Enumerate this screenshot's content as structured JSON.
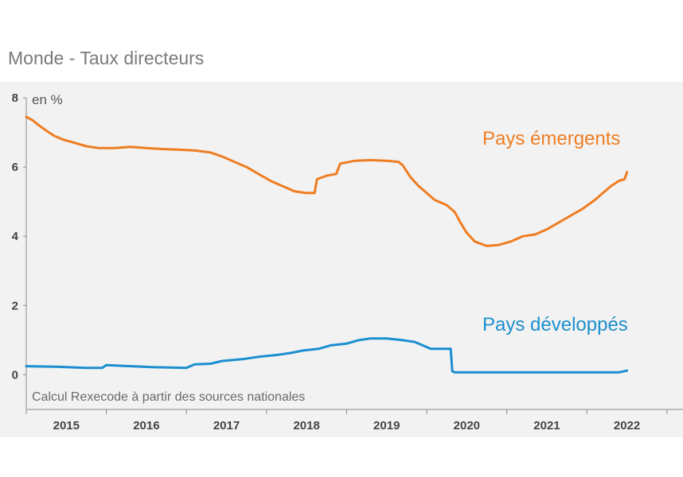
{
  "chart_data": {
    "type": "line",
    "title": "Monde - Taux directeurs",
    "unit_label": "en %",
    "source": "Calcul Rexecode à partir des sources nationales",
    "xlim": [
      2014.5,
      2022.7
    ],
    "ylim": [
      -1,
      8
    ],
    "y_ticks": [
      "0",
      "2",
      "4",
      "6",
      "8"
    ],
    "x_ticks": [
      "2015",
      "2016",
      "2017",
      "2018",
      "2019",
      "2020",
      "2021",
      "2022"
    ],
    "grid": false,
    "series": [
      {
        "name": "Pays émergents",
        "color": "#EF7D22",
        "points": [
          [
            2014.5,
            7.45
          ],
          [
            2014.58,
            7.35
          ],
          [
            2014.66,
            7.2
          ],
          [
            2014.75,
            7.05
          ],
          [
            2014.85,
            6.9
          ],
          [
            2014.95,
            6.8
          ],
          [
            2015.1,
            6.7
          ],
          [
            2015.25,
            6.6
          ],
          [
            2015.4,
            6.55
          ],
          [
            2015.6,
            6.55
          ],
          [
            2015.8,
            6.58
          ],
          [
            2016.0,
            6.55
          ],
          [
            2016.2,
            6.52
          ],
          [
            2016.4,
            6.5
          ],
          [
            2016.6,
            6.48
          ],
          [
            2016.8,
            6.42
          ],
          [
            2016.95,
            6.3
          ],
          [
            2017.1,
            6.15
          ],
          [
            2017.25,
            6.0
          ],
          [
            2017.4,
            5.8
          ],
          [
            2017.55,
            5.6
          ],
          [
            2017.7,
            5.45
          ],
          [
            2017.85,
            5.3
          ],
          [
            2018.0,
            5.25
          ],
          [
            2018.1,
            5.25
          ],
          [
            2018.13,
            5.65
          ],
          [
            2018.25,
            5.75
          ],
          [
            2018.37,
            5.8
          ],
          [
            2018.42,
            6.1
          ],
          [
            2018.6,
            6.18
          ],
          [
            2018.8,
            6.2
          ],
          [
            2019.0,
            6.18
          ],
          [
            2019.15,
            6.15
          ],
          [
            2019.2,
            6.05
          ],
          [
            2019.3,
            5.7
          ],
          [
            2019.4,
            5.45
          ],
          [
            2019.5,
            5.25
          ],
          [
            2019.6,
            5.05
          ],
          [
            2019.75,
            4.9
          ],
          [
            2019.85,
            4.7
          ],
          [
            2019.92,
            4.4
          ],
          [
            2020.0,
            4.1
          ],
          [
            2020.1,
            3.85
          ],
          [
            2020.25,
            3.72
          ],
          [
            2020.4,
            3.75
          ],
          [
            2020.55,
            3.85
          ],
          [
            2020.7,
            4.0
          ],
          [
            2020.85,
            4.05
          ],
          [
            2021.0,
            4.2
          ],
          [
            2021.15,
            4.4
          ],
          [
            2021.3,
            4.6
          ],
          [
            2021.45,
            4.8
          ],
          [
            2021.6,
            5.05
          ],
          [
            2021.7,
            5.25
          ],
          [
            2021.8,
            5.45
          ],
          [
            2021.9,
            5.6
          ],
          [
            2021.97,
            5.65
          ],
          [
            2022.0,
            5.85
          ]
        ]
      },
      {
        "name": "Pays développés",
        "color": "#1B8FCF",
        "points": [
          [
            2014.5,
            0.25
          ],
          [
            2014.9,
            0.23
          ],
          [
            2015.25,
            0.2
          ],
          [
            2015.45,
            0.2
          ],
          [
            2015.5,
            0.28
          ],
          [
            2015.8,
            0.25
          ],
          [
            2016.1,
            0.22
          ],
          [
            2016.5,
            0.2
          ],
          [
            2016.6,
            0.3
          ],
          [
            2016.8,
            0.32
          ],
          [
            2016.95,
            0.4
          ],
          [
            2017.2,
            0.45
          ],
          [
            2017.4,
            0.52
          ],
          [
            2017.65,
            0.58
          ],
          [
            2017.8,
            0.63
          ],
          [
            2017.95,
            0.7
          ],
          [
            2018.15,
            0.75
          ],
          [
            2018.3,
            0.85
          ],
          [
            2018.5,
            0.9
          ],
          [
            2018.65,
            1.0
          ],
          [
            2018.8,
            1.05
          ],
          [
            2019.0,
            1.05
          ],
          [
            2019.2,
            1.0
          ],
          [
            2019.35,
            0.95
          ],
          [
            2019.45,
            0.85
          ],
          [
            2019.55,
            0.75
          ],
          [
            2019.7,
            0.75
          ],
          [
            2019.8,
            0.75
          ],
          [
            2019.82,
            0.1
          ],
          [
            2019.85,
            0.07
          ],
          [
            2020.5,
            0.07
          ],
          [
            2021.5,
            0.07
          ],
          [
            2021.9,
            0.07
          ],
          [
            2022.0,
            0.12
          ]
        ]
      }
    ]
  }
}
